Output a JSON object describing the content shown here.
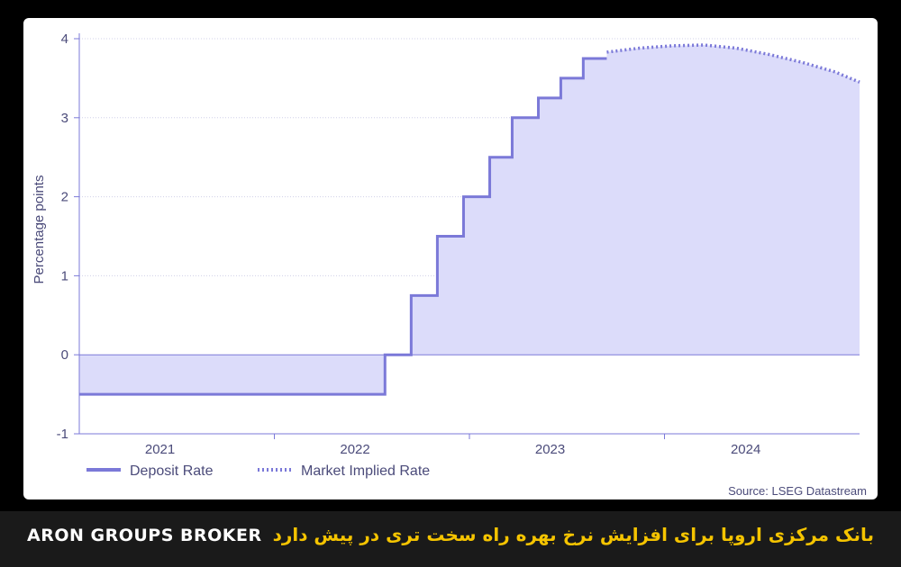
{
  "chart_data": {
    "type": "line",
    "ylabel": "Percentage points",
    "ylim": [
      -1,
      4
    ],
    "yticks": [
      -1,
      0,
      1,
      2,
      3,
      4
    ],
    "xlim": [
      "2021-01-01",
      "2024-12-31"
    ],
    "xticks": [
      {
        "date": "2021-06-01",
        "label": "2021"
      },
      {
        "date": "2022-06-01",
        "label": "2022"
      },
      {
        "date": "2023-06-01",
        "label": "2023"
      },
      {
        "date": "2024-06-01",
        "label": "2024"
      }
    ],
    "grid": true,
    "legend": "bottom-left",
    "series": [
      {
        "name": "Deposit Rate",
        "style": "step",
        "color": "#7b79d8",
        "points": [
          {
            "date": "2021-01-01",
            "value": -0.5
          },
          {
            "date": "2022-07-27",
            "value": 0.0
          },
          {
            "date": "2022-09-14",
            "value": 0.75
          },
          {
            "date": "2022-11-02",
            "value": 1.5
          },
          {
            "date": "2022-12-21",
            "value": 2.0
          },
          {
            "date": "2023-02-08",
            "value": 2.5
          },
          {
            "date": "2023-03-22",
            "value": 3.0
          },
          {
            "date": "2023-05-10",
            "value": 3.25
          },
          {
            "date": "2023-06-21",
            "value": 3.5
          },
          {
            "date": "2023-08-02",
            "value": 3.75
          },
          {
            "date": "2023-09-15",
            "value": 3.75
          }
        ]
      },
      {
        "name": "Market Implied Rate",
        "style": "dotted",
        "color": "#7b79d8",
        "points": [
          {
            "date": "2023-09-15",
            "value": 3.83
          },
          {
            "date": "2023-11-15",
            "value": 3.88
          },
          {
            "date": "2024-01-15",
            "value": 3.91
          },
          {
            "date": "2024-03-15",
            "value": 3.92
          },
          {
            "date": "2024-05-15",
            "value": 3.88
          },
          {
            "date": "2024-07-15",
            "value": 3.8
          },
          {
            "date": "2024-09-15",
            "value": 3.7
          },
          {
            "date": "2024-11-15",
            "value": 3.58
          },
          {
            "date": "2024-12-31",
            "value": 3.45
          }
        ]
      }
    ],
    "source": "Source: LSEG Datastream",
    "fill_color": "#dcdcfa",
    "axis_color": "#7b79d8"
  },
  "footer": {
    "brand": "ARON GROUPS BROKER",
    "headline": "بانک مرکزی اروپا برای افزایش نرخ بهره راه سخت تری در پیش دارد",
    "headline_color": "#f5c400"
  }
}
